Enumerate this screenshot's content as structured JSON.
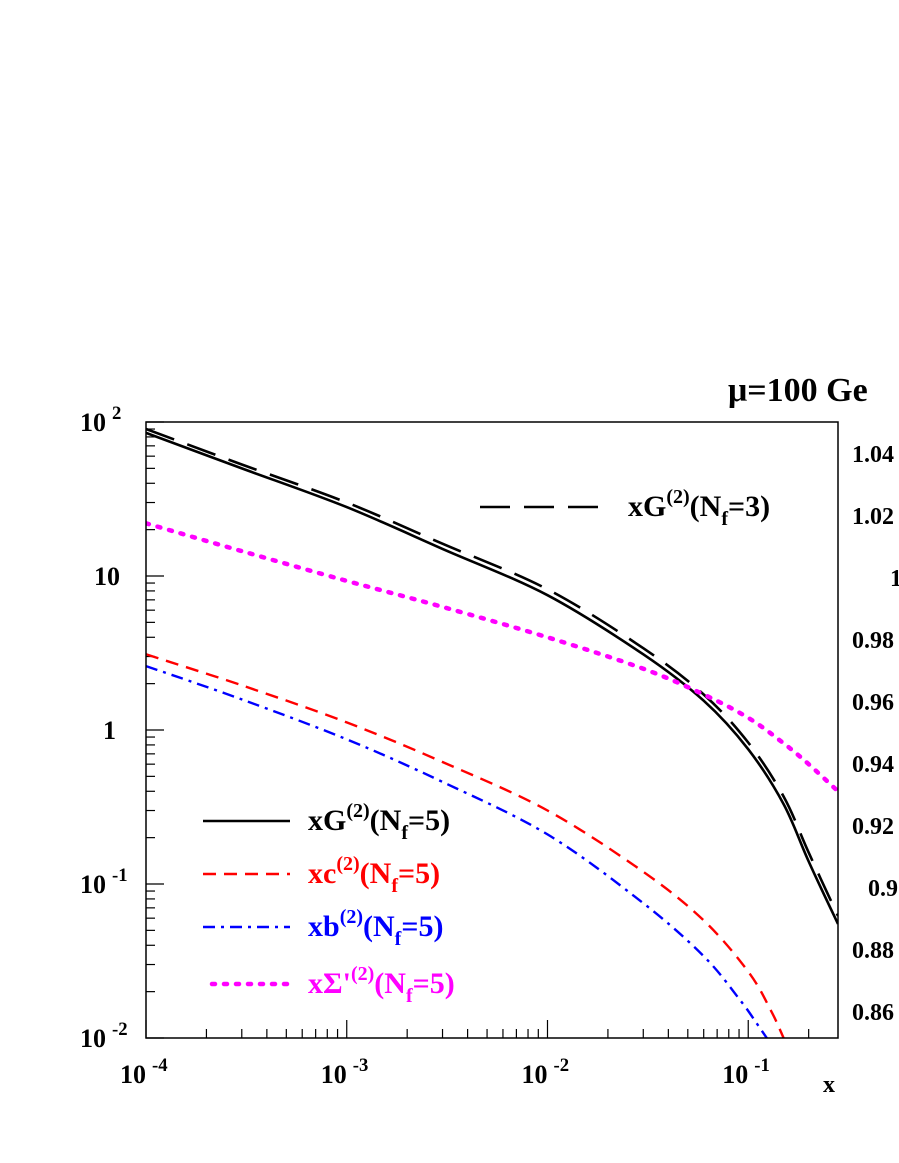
{
  "chart_data": {
    "type": "line",
    "title": "μ=100 Ge",
    "xlabel": "x",
    "x_scale": "log",
    "y_scale": "log",
    "xlim": [
      0.0001,
      0.28
    ],
    "ylim": [
      0.01,
      100
    ],
    "x_ticks": [
      {
        "value": 0.0001,
        "base": "10",
        "exp": "-4"
      },
      {
        "value": 0.001,
        "base": "10",
        "exp": "-3"
      },
      {
        "value": 0.01,
        "base": "10",
        "exp": "-2"
      },
      {
        "value": 0.1,
        "base": "10",
        "exp": "-1"
      }
    ],
    "y_ticks": [
      {
        "value": 100,
        "base": "10",
        "exp": "2"
      },
      {
        "value": 10,
        "base": "10",
        "exp": ""
      },
      {
        "value": 1,
        "base": "1",
        "exp": ""
      },
      {
        "value": 0.1,
        "base": "10",
        "exp": "-1"
      },
      {
        "value": 0.01,
        "base": "10",
        "exp": "-2"
      }
    ],
    "right_axis_labels": [
      "1.04",
      "1.02",
      "1",
      "0.98",
      "0.96",
      "0.94",
      "0.92",
      "0.9",
      "0.88",
      "0.86"
    ],
    "series": [
      {
        "name": "xG(2)(Nf=5)",
        "legend": {
          "pre": "xG",
          "sup": "(2)",
          "mid": "(N",
          "sub": "f",
          "post": "=5)"
        },
        "color": "#000000",
        "dash": "solid",
        "x": [
          0.0001,
          0.0003,
          0.001,
          0.003,
          0.01,
          0.03,
          0.06,
          0.1,
          0.15,
          0.2,
          0.28
        ],
        "y": [
          85,
          50,
          28,
          15,
          7.5,
          3.1,
          1.55,
          0.75,
          0.33,
          0.14,
          0.055
        ]
      },
      {
        "name": "xG(2)(Nf=3)",
        "legend": {
          "pre": "xG",
          "sup": "(2)",
          "mid": "(N",
          "sub": "f",
          "post": "=3)"
        },
        "color": "#000000",
        "dash": "long",
        "x": [
          0.0001,
          0.0003,
          0.001,
          0.003,
          0.01,
          0.03,
          0.06,
          0.1,
          0.15,
          0.2,
          0.28
        ],
        "y": [
          90,
          53,
          30,
          16.2,
          8.2,
          3.4,
          1.7,
          0.83,
          0.37,
          0.16,
          0.062
        ]
      },
      {
        "name": "xc(2)(Nf=5)",
        "legend": {
          "pre": "xc",
          "sup": "(2)",
          "mid": "(N",
          "sub": "f",
          "post": "=5)"
        },
        "color": "#ff0000",
        "dash": "dash",
        "x": [
          0.0001,
          0.0003,
          0.001,
          0.003,
          0.01,
          0.03,
          0.06,
          0.1,
          0.13,
          0.15
        ],
        "y": [
          3.1,
          1.95,
          1.12,
          0.62,
          0.3,
          0.12,
          0.058,
          0.027,
          0.015,
          0.01
        ]
      },
      {
        "name": "xb(2)(Nf=5)",
        "legend": {
          "pre": "xb",
          "sup": "(2)",
          "mid": "(N",
          "sub": "f",
          "post": "=5)"
        },
        "color": "#0000ff",
        "dash": "dashdot",
        "x": [
          0.0001,
          0.0003,
          0.001,
          0.003,
          0.01,
          0.03,
          0.06,
          0.09,
          0.11,
          0.125
        ],
        "y": [
          2.6,
          1.58,
          0.87,
          0.46,
          0.21,
          0.075,
          0.034,
          0.018,
          0.0125,
          0.0098
        ]
      },
      {
        "name": "xΣ'(2)(Nf=5)",
        "legend": {
          "pre": "xΣ'",
          "sup": "(2)",
          "mid": "(N",
          "sub": "f",
          "post": "=5)"
        },
        "color": "#ff00ff",
        "dash": "dot",
        "x": [
          0.0001,
          0.0003,
          0.001,
          0.003,
          0.01,
          0.03,
          0.06,
          0.1,
          0.15,
          0.2,
          0.28
        ],
        "y": [
          22,
          14.5,
          9.3,
          6.3,
          4.0,
          2.5,
          1.7,
          1.2,
          0.82,
          0.6,
          0.4
        ]
      }
    ]
  }
}
